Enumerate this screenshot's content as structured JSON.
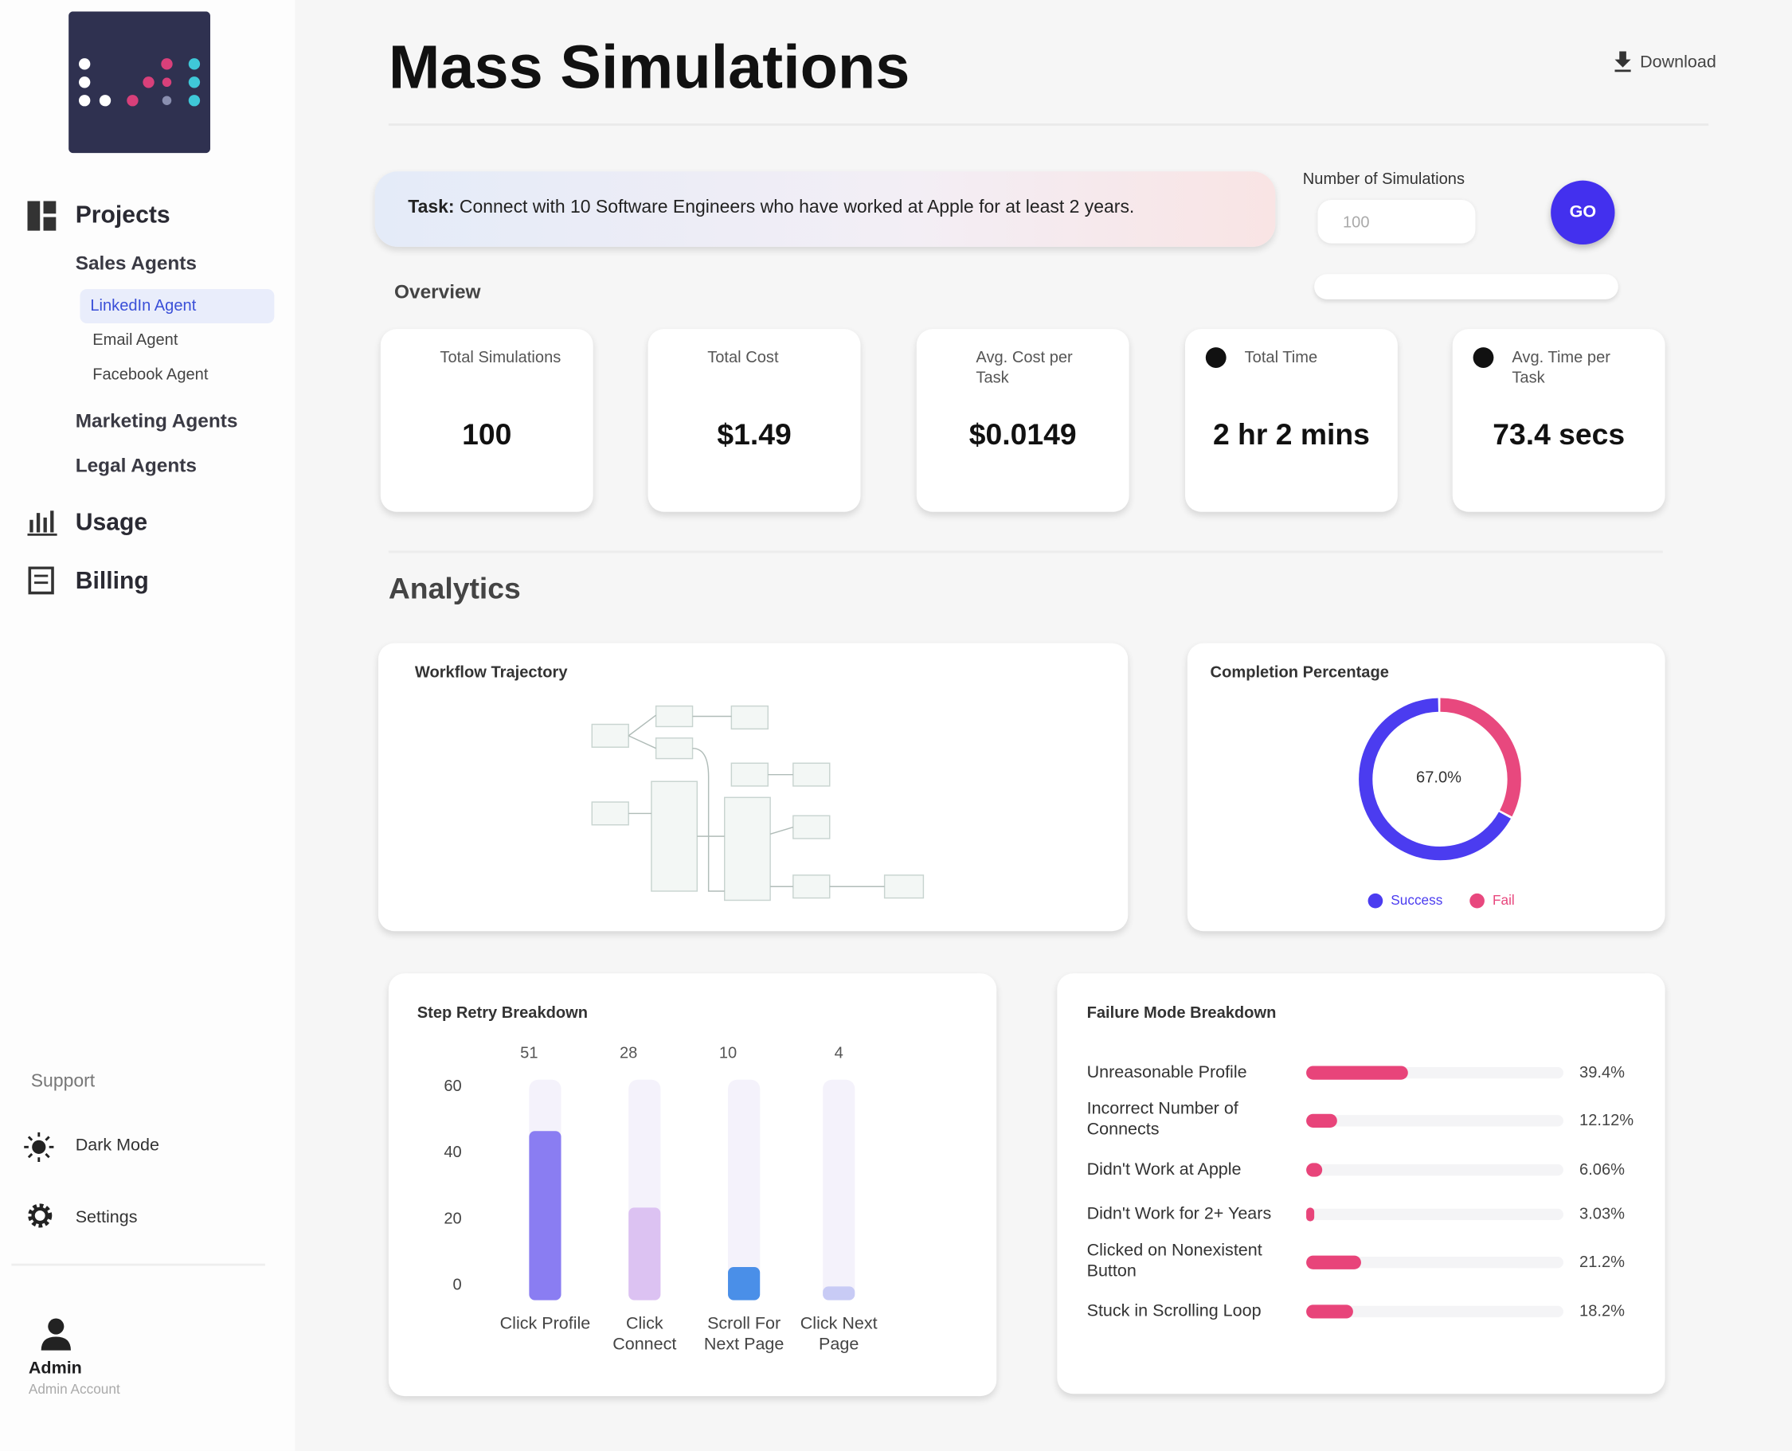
{
  "sidebar": {
    "projects": "Projects",
    "sales_agents": "Sales Agents",
    "agents": [
      "LinkedIn Agent",
      "Email Agent",
      "Facebook Agent"
    ],
    "marketing_agents": "Marketing Agents",
    "legal_agents": "Legal Agents",
    "usage": "Usage",
    "billing": "Billing",
    "support": "Support",
    "dark_mode": "Dark Mode",
    "settings": "Settings",
    "user": {
      "name": "Admin",
      "role": "Admin Account"
    }
  },
  "header": {
    "title": "Mass Simulations",
    "download": "Download"
  },
  "task": {
    "label": "Task:",
    "text": "Connect with 10 Software Engineers who have worked at Apple for at least 2 years.",
    "simulations_label": "Number of Simulations",
    "simulations_placeholder": "100",
    "go": "GO"
  },
  "overview": {
    "title": "Overview",
    "cards": [
      {
        "label": "Total Simulations",
        "value": "100"
      },
      {
        "label": "Total Cost",
        "value": "$1.49"
      },
      {
        "label": "Avg. Cost per Task",
        "value": "$0.0149"
      },
      {
        "label": "Total Time",
        "value": "2 hr 2 mins"
      },
      {
        "label": "Avg. Time per Task",
        "value": "73.4 secs"
      }
    ]
  },
  "analytics": {
    "title": "Analytics",
    "workflow": {
      "title": "Workflow Trajectory"
    },
    "completion": {
      "title": "Completion Percentage",
      "type": "pie",
      "center_label": "67.0%",
      "series": [
        {
          "name": "Success",
          "value": 67.0,
          "color": "#4b3cf0"
        },
        {
          "name": "Fail",
          "value": 33.0,
          "color": "#e8487e"
        }
      ]
    },
    "step_retry": {
      "title": "Step Retry Breakdown",
      "type": "bar",
      "categories": [
        "Click Profile",
        "Click Connect",
        "Scroll For Next Page",
        "Click Next Page"
      ],
      "values": [
        51,
        28,
        10,
        4
      ],
      "colors": [
        "#8a7df2",
        "#dcc2f2",
        "#4a8fe8",
        "#c8cbf5"
      ],
      "ylim": [
        0,
        60
      ],
      "yticks": [
        0,
        20,
        40,
        60
      ]
    },
    "failure": {
      "title": "Failure Mode Breakdown",
      "type": "bar",
      "categories": [
        "Unreasonable Profile",
        "Incorrect Number of Connects",
        "Didn't Work at Apple",
        "Didn't Work for 2+ Years",
        "Clicked on Nonexistent Button",
        "Stuck in Scrolling Loop"
      ],
      "values": [
        39.4,
        12.12,
        6.06,
        3.03,
        21.2,
        18.2
      ],
      "value_labels": [
        "39.4%",
        "12.12%",
        "6.06%",
        "3.03%",
        "21.2%",
        "18.2%"
      ],
      "xlim": [
        0,
        100
      ],
      "color": "#e8447a"
    }
  }
}
